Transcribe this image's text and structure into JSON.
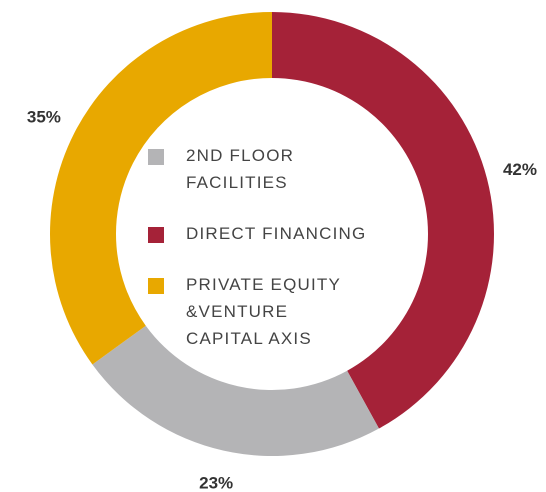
{
  "chart_data": {
    "type": "donut",
    "categories": [
      "DIRECT FINANCING",
      "2ND FLOOR FACILITIES",
      "PRIVATE EQUITY &VENTURE CAPITAL AXIS"
    ],
    "values": [
      42,
      23,
      35
    ],
    "value_labels": [
      "42%",
      "23%",
      "35%"
    ],
    "colors": [
      "#a52238",
      "#b4b4b6",
      "#e8a800"
    ],
    "legend_order": [
      1,
      0,
      2
    ]
  }
}
